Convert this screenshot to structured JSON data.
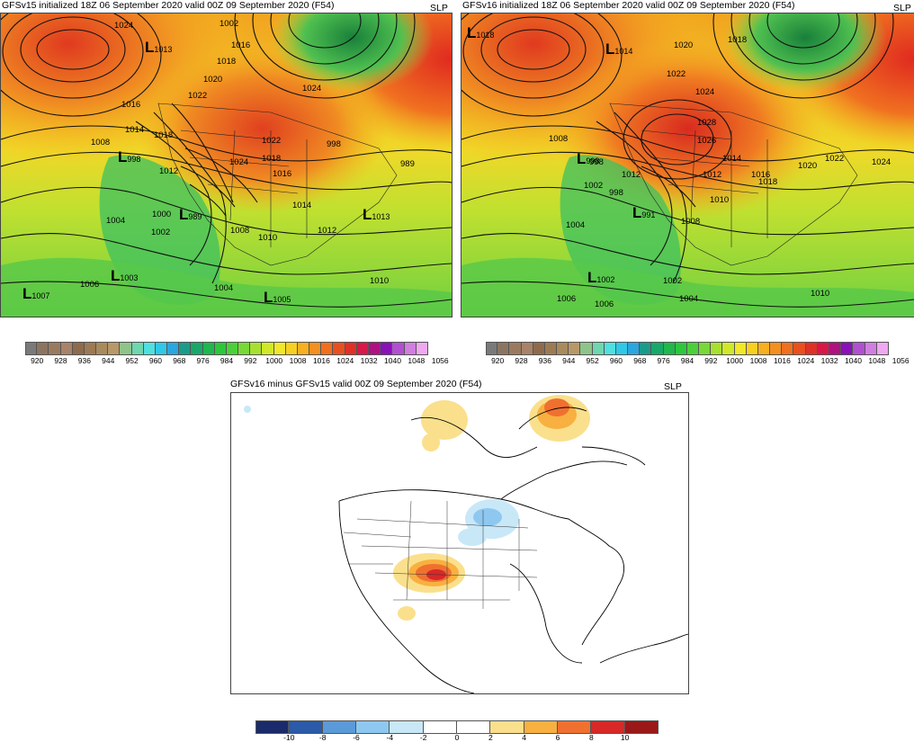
{
  "panels": {
    "left": {
      "title": "GFSv15 initialized 18Z 06 September 2020 valid 00Z 09 September 2020 (F54)",
      "var": "SLP"
    },
    "right": {
      "title": "GFSv16 initialized 18Z 06 September 2020 valid 00Z 09 September 2020 (F54)",
      "var": "SLP"
    },
    "diff": {
      "title": "GFSv16 minus GFSv15 valid 00Z 09 September 2020 (F54)",
      "var": "SLP"
    }
  },
  "left_labels": [
    "1024",
    "1013",
    "1002",
    "1016",
    "1018",
    "1020",
    "1022",
    "1024",
    "1016",
    "1014",
    "1018",
    "1008",
    "998",
    "1012",
    "1022",
    "1024",
    "1018",
    "1016",
    "1014",
    "1012",
    "1004",
    "1000",
    "989",
    "1002",
    "1006",
    "1008",
    "1010",
    "1013",
    "1006",
    "1003",
    "1004",
    "1007",
    "1010",
    "1005"
  ],
  "left_lows": [
    {
      "v": "1013"
    },
    {
      "v": "998"
    },
    {
      "v": "989"
    },
    {
      "v": "1003"
    },
    {
      "v": "1007"
    },
    {
      "v": "1013"
    },
    {
      "v": "1005"
    }
  ],
  "right_labels": [
    "1018",
    "1014",
    "1020",
    "1018",
    "1022",
    "1024",
    "1028",
    "1026",
    "1008",
    "998",
    "1012",
    "1002",
    "998",
    "1004",
    "1012",
    "1014",
    "1010",
    "1016",
    "1018",
    "1020",
    "1022",
    "1024",
    "1008",
    "1002",
    "1006",
    "1006",
    "1004",
    "1010"
  ],
  "right_lows": [
    {
      "v": "1018"
    },
    {
      "v": "1014"
    },
    {
      "v": "998"
    },
    {
      "v": "991"
    },
    {
      "v": "1002"
    }
  ],
  "slp_colorbar": {
    "ticks": [
      "920",
      "928",
      "936",
      "944",
      "952",
      "960",
      "968",
      "976",
      "984",
      "992",
      "1000",
      "1008",
      "1016",
      "1024",
      "1032",
      "1040",
      "1048",
      "1056"
    ],
    "colors": [
      "#7a7a7a",
      "#8c7560",
      "#9a7a5e",
      "#a8826a",
      "#8e6b4c",
      "#9c7a54",
      "#a98a5c",
      "#b89868",
      "#8ec48a",
      "#6fd6b0",
      "#50e0e0",
      "#30c8e8",
      "#2aa6e0",
      "#1b9b8a",
      "#18a86a",
      "#1eb84c",
      "#2cc83c",
      "#4cd03a",
      "#78d838",
      "#a8e030",
      "#d0e828",
      "#f0e828",
      "#f8d020",
      "#f8b020",
      "#f49020",
      "#f07020",
      "#e85020",
      "#e03028",
      "#d81848",
      "#b01080",
      "#8a10b8",
      "#b050d0",
      "#d07ee0",
      "#f0a8f0"
    ]
  },
  "diff_colorbar": {
    "ticks": [
      "-10",
      "-8",
      "-6",
      "-4",
      "-2",
      "0",
      "2",
      "4",
      "6",
      "8",
      "10"
    ],
    "colors": [
      "#1a2a6a",
      "#2a5aa8",
      "#5a9ad8",
      "#8ec8f0",
      "#c8e8f8",
      "#ffffff",
      "#ffffff",
      "#fae08c",
      "#f8b040",
      "#f07030",
      "#d82828",
      "#9a1818"
    ]
  }
}
